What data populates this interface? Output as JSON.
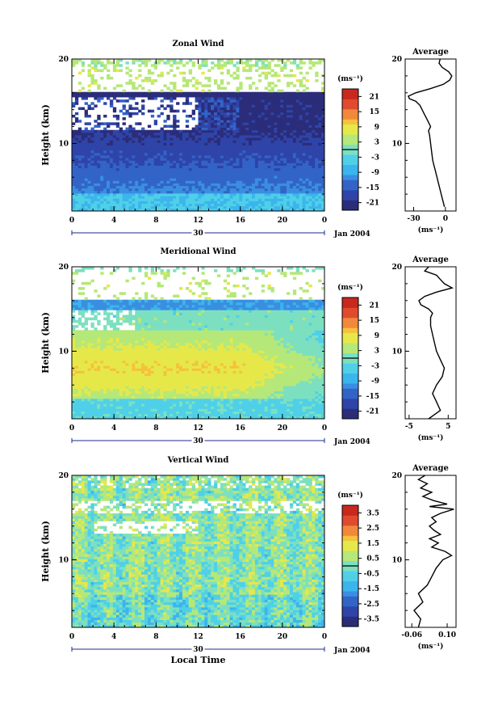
{
  "chart_data": [
    {
      "type": "heatmap",
      "title": "Zonal Wind",
      "ylabel": "Height (km)",
      "xlabel": "",
      "xlim": [
        0,
        24
      ],
      "ylim": [
        2,
        20
      ],
      "x_ticks": [
        "0",
        "4",
        "8",
        "12",
        "16",
        "20",
        "0"
      ],
      "y_ticks": [
        "10",
        "20"
      ],
      "date_day_label": "30",
      "date_label": "Jan 2004",
      "colorbar": {
        "unit": "(ms⁻¹)",
        "ticks": [
          "21",
          "15",
          "9",
          "3",
          "-3",
          "-9",
          "-15",
          "-21"
        ],
        "range": [
          -24,
          24
        ],
        "zero_line": true
      },
      "profile": {
        "title": "Average",
        "x_ticks": [
          "-30",
          "0"
        ],
        "xlim": [
          -38,
          10
        ],
        "xlabel": "(ms⁻¹)",
        "heights": [
          2.5,
          3,
          4,
          5,
          6,
          7,
          7.5,
          8,
          9,
          10,
          11,
          11.5,
          12,
          12.5,
          13,
          13.5,
          14,
          14.5,
          15,
          15.3,
          15.6,
          16,
          16.5,
          17,
          17.5,
          18,
          18.5,
          19,
          19.5,
          20
        ],
        "values": [
          -1,
          -2,
          -4,
          -6,
          -8,
          -10,
          -11,
          -12,
          -13,
          -14,
          -15,
          -16,
          -14,
          -16,
          -18,
          -20,
          -22,
          -24,
          -28,
          -34,
          -35,
          -28,
          -14,
          -2,
          4,
          6,
          3,
          -3,
          -6,
          -5
        ]
      }
    },
    {
      "type": "heatmap",
      "title": "Meridional Wind",
      "ylabel": "Height (km)",
      "xlabel": "",
      "xlim": [
        0,
        24
      ],
      "ylim": [
        2,
        20
      ],
      "x_ticks": [
        "0",
        "4",
        "8",
        "12",
        "16",
        "20",
        "0"
      ],
      "y_ticks": [
        "10",
        "20"
      ],
      "date_day_label": "30",
      "date_label": "Jan 2004",
      "colorbar": {
        "unit": "(ms⁻¹)",
        "ticks": [
          "21",
          "15",
          "9",
          "3",
          "-3",
          "-9",
          "-15",
          "-21"
        ],
        "range": [
          -24,
          24
        ],
        "zero_line": true
      },
      "profile": {
        "title": "Average",
        "x_ticks": [
          "-5",
          "5"
        ],
        "xlim": [
          -6,
          7
        ],
        "xlabel": "(ms⁻¹)",
        "heights": [
          2,
          2.5,
          3,
          4,
          5,
          6,
          7,
          8,
          9,
          10,
          11,
          12,
          13,
          14,
          14.5,
          15,
          15.5,
          16,
          16.5,
          17,
          17.5,
          18,
          18.5,
          19,
          19.5,
          20
        ],
        "values": [
          0,
          1.5,
          3,
          2,
          1,
          2,
          3.5,
          4,
          3,
          2,
          1.5,
          1,
          0.5,
          0.5,
          1,
          0,
          -2,
          -2.5,
          -1,
          2,
          6,
          4,
          3,
          2,
          -1,
          0
        ]
      }
    },
    {
      "type": "heatmap",
      "title": "Vertical Wind",
      "ylabel": "Height (km)",
      "xlabel": "Local Time",
      "xlim": [
        0,
        24
      ],
      "ylim": [
        2,
        20
      ],
      "x_ticks": [
        "0",
        "4",
        "8",
        "12",
        "16",
        "20",
        "0"
      ],
      "y_ticks": [
        "10",
        "20"
      ],
      "date_day_label": "30",
      "date_label": "Jan 2004",
      "colorbar": {
        "unit": "(ms⁻¹)",
        "ticks": [
          "3.5",
          "2.5",
          "1.5",
          "0.5",
          "-0.5",
          "-1.5",
          "-2.5",
          "-3.5"
        ],
        "range": [
          -4,
          4
        ],
        "zero_line": true
      },
      "profile": {
        "title": "Average",
        "x_ticks": [
          "-0.06",
          "0.10"
        ],
        "xlim": [
          -0.09,
          0.14
        ],
        "xlabel": "(ms⁻¹)",
        "heights": [
          2,
          3,
          4,
          5,
          6,
          7,
          8,
          9,
          10,
          10.5,
          11,
          11.5,
          12,
          12.5,
          13,
          13.5,
          14,
          14.5,
          15,
          15.5,
          16,
          16.3,
          16.6,
          17,
          17.5,
          18,
          18.5,
          19,
          19.5,
          20
        ],
        "values": [
          -0.03,
          -0.02,
          -0.05,
          -0.01,
          -0.03,
          0.01,
          0.03,
          0.05,
          0.08,
          0.12,
          0.09,
          0.03,
          0.06,
          0.02,
          0.07,
          0.04,
          0.02,
          0.05,
          0.03,
          0.07,
          0.13,
          0.02,
          0.1,
          0.04,
          -0.01,
          0.03,
          -0.02,
          0.01,
          -0.03,
          0.0
        ]
      }
    }
  ],
  "colormap": [
    "#2b2d7a",
    "#2f44a8",
    "#3264c8",
    "#3a8ee0",
    "#3cb4ec",
    "#4fd0e8",
    "#7ce0c0",
    "#b5e878",
    "#e6e84a",
    "#f5c23c",
    "#f2883a",
    "#e04a2e",
    "#c8281e"
  ]
}
